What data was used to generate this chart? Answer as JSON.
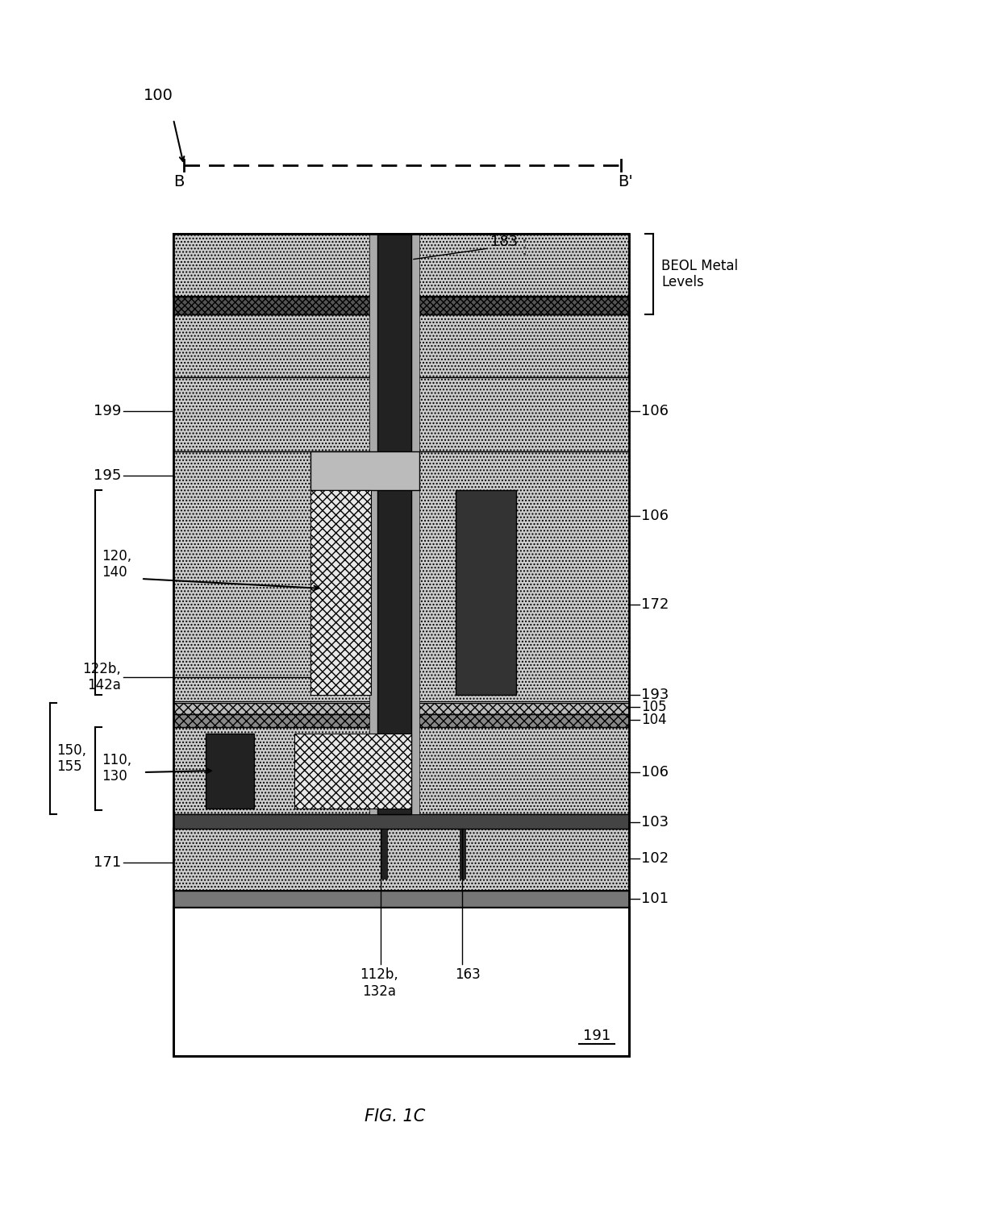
{
  "fig_label": "FIG. 1C",
  "title_label": "100",
  "BB_label_left": "B",
  "BB_label_right": "B'",
  "beol_label": "BEOL Metal\nLevels",
  "label_183": "183",
  "label_199": "199",
  "label_106_top": "106",
  "label_106_mid": "106",
  "label_106_bot": "106",
  "label_195": "195",
  "label_172": "172",
  "label_193": "193",
  "label_105": "105",
  "label_104": "104",
  "label_103": "103",
  "label_102": "102",
  "label_101": "101",
  "label_171": "171",
  "label_191": "191",
  "label_120_140": "120,\n140",
  "label_122b_142a": "122b,\n142a",
  "label_150_155": "150,\n155",
  "label_110_130": "110,\n130",
  "label_112b_132a": "112b,\n132a",
  "label_163": "163",
  "bg_color": "#ffffff"
}
